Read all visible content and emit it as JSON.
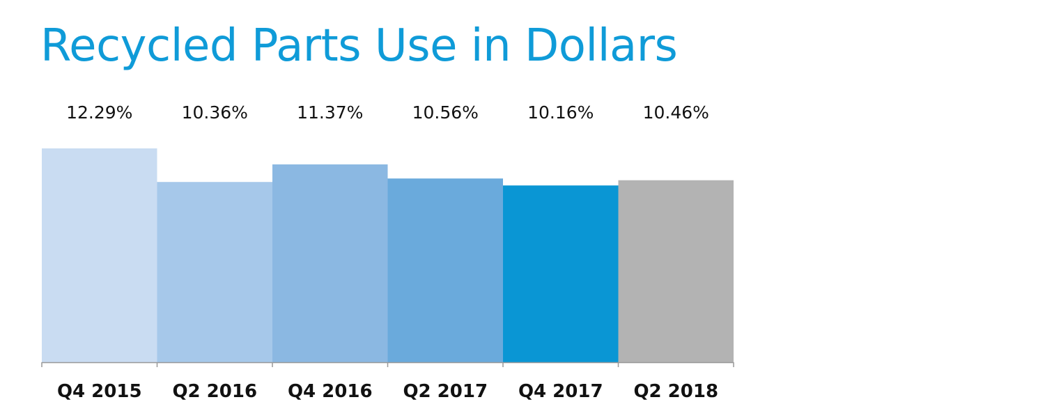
{
  "chart_data": {
    "type": "bar",
    "title": "Recycled Parts Use in Dollars",
    "xlabel": "",
    "ylabel": "",
    "categories": [
      "Q4 2015",
      "Q2 2016",
      "Q4 2016",
      "Q2 2017",
      "Q4 2017",
      "Q2 2018"
    ],
    "values": [
      12.29,
      10.36,
      11.37,
      10.56,
      10.16,
      10.46
    ],
    "data_labels": [
      "12.29%",
      "10.36%",
      "11.37%",
      "10.56%",
      "10.16%",
      "10.46%"
    ],
    "colors": [
      "#c9dcf2",
      "#a6c8ea",
      "#8bb8e2",
      "#6aaadc",
      "#0a96d4",
      "#b3b3b3"
    ],
    "ylim": [
      0,
      12.29
    ],
    "grid": false,
    "legend": "none"
  }
}
